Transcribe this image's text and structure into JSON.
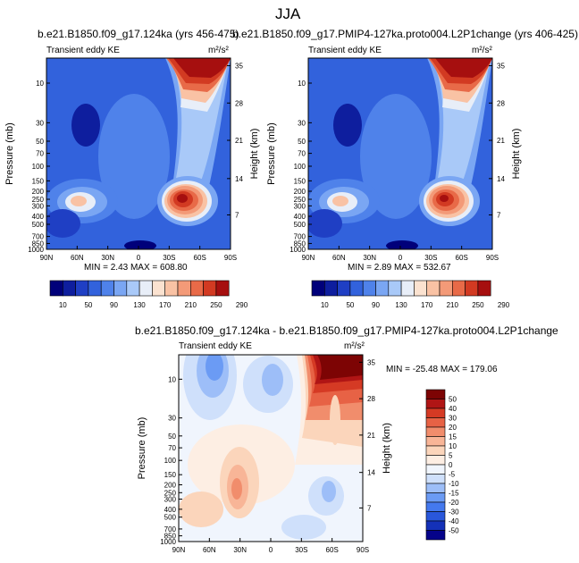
{
  "title": "JJA",
  "colors": {
    "main_scale": [
      "#00007a",
      "#0e1e9e",
      "#1f3fc4",
      "#3262dc",
      "#4f82ea",
      "#7aa6f3",
      "#a9c9f8",
      "#e8eef8",
      "#fbe2d0",
      "#f9c2a4",
      "#f39a78",
      "#e86a48",
      "#d23a22",
      "#a60f0f"
    ],
    "diff_scale": [
      "#05038a",
      "#1431b8",
      "#2957db",
      "#4479ee",
      "#6b9bf4",
      "#9dbef8",
      "#cfe0fb",
      "#f0f5fd",
      "#fdeee3",
      "#fbd5bb",
      "#f8b597",
      "#f18d6c",
      "#e76245",
      "#d53a24",
      "#b01515",
      "#7d0404"
    ]
  },
  "chart_data": [
    {
      "type": "heatmap",
      "title": "b.e21.B1850.f09_g17.124ka (yrs 456-475)",
      "left_label": "Transient eddy KE",
      "right_label": "m²/s²",
      "xlabel": "",
      "ylabel": "Pressure (mb)",
      "ylabel_right": "Height (km)",
      "x_ticks": [
        "90N",
        "60N",
        "30N",
        "0",
        "30S",
        "60S",
        "90S"
      ],
      "y_ticks": [
        "10",
        "30",
        "50",
        "70",
        "100",
        "150",
        "200",
        "250",
        "300",
        "400",
        "500",
        "700",
        "850",
        "1000"
      ],
      "height_ticks": [
        "35",
        "28",
        "21",
        "14",
        "7"
      ],
      "stats": "MIN =  2.43   MAX = 608.80",
      "colorbar_labels": [
        "10",
        "50",
        "90",
        "130",
        "170",
        "210",
        "250",
        "290"
      ]
    },
    {
      "type": "heatmap",
      "title": "b.e21.B1850.f09_g17.PMIP4-127ka.proto004.L2P1change (yrs 406-425)",
      "left_label": "Transient eddy KE",
      "right_label": "m²/s²",
      "xlabel": "",
      "ylabel": "Pressure (mb)",
      "ylabel_right": "Height (km)",
      "x_ticks": [
        "90N",
        "60N",
        "30N",
        "0",
        "30S",
        "60S",
        "90S"
      ],
      "y_ticks": [
        "10",
        "30",
        "50",
        "70",
        "100",
        "150",
        "200",
        "250",
        "300",
        "400",
        "500",
        "700",
        "850",
        "1000"
      ],
      "height_ticks": [
        "35",
        "28",
        "21",
        "14",
        "7"
      ],
      "stats": "MIN =  2.89   MAX = 532.67",
      "colorbar_labels": [
        "10",
        "50",
        "90",
        "130",
        "170",
        "210",
        "250",
        "290"
      ]
    },
    {
      "type": "heatmap",
      "title": "b.e21.B1850.f09_g17.124ka - b.e21.B1850.f09_g17.PMIP4-127ka.proto004.L2P1change",
      "left_label": "Transient eddy KE",
      "right_label": "m²/s²",
      "xlabel": "",
      "ylabel": "Pressure (mb)",
      "ylabel_right": "Height (km)",
      "x_ticks": [
        "90N",
        "60N",
        "30N",
        "0",
        "30S",
        "60S",
        "90S"
      ],
      "y_ticks": [
        "10",
        "30",
        "50",
        "70",
        "100",
        "150",
        "200",
        "250",
        "300",
        "400",
        "500",
        "700",
        "850",
        "1000"
      ],
      "height_ticks": [
        "35",
        "28",
        "21",
        "14",
        "7"
      ],
      "stats": "MIN = -25.48   MAX = 179.06",
      "colorbar_labels": [
        "50",
        "40",
        "30",
        "20",
        "15",
        "10",
        "5",
        "0",
        "-5",
        "-10",
        "-15",
        "-20",
        "-30",
        "-40",
        "-50"
      ]
    }
  ]
}
